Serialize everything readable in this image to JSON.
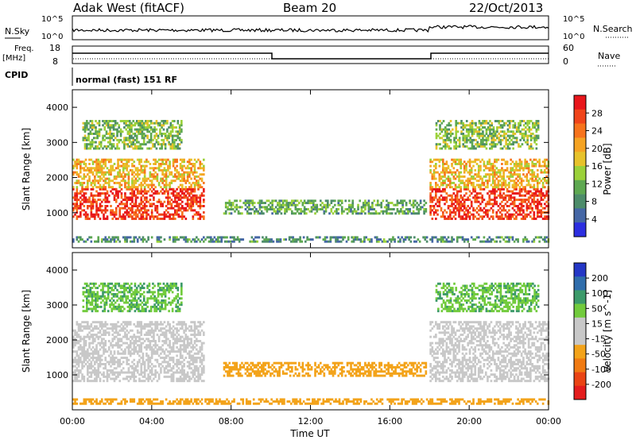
{
  "header": {
    "site": "Adak West (fitACF)",
    "beam": "Beam 20",
    "date": "22/Oct/2013"
  },
  "status_panels": {
    "nsky_label": "N.Sky",
    "nsearch_label": "N.Search",
    "noise_ticks": [
      "10^5",
      "10^0"
    ],
    "freq_label": "Freq.",
    "freq_unit": "[MHz]",
    "freq_ticks": [
      "18",
      "8"
    ],
    "nave_label": "Nave",
    "nave_ticks": [
      "60",
      "0"
    ],
    "cpid_label": "CPID",
    "cpid_text": "normal (fast) 151 RF"
  },
  "chart_data": [
    {
      "type": "heatmap",
      "title": "",
      "ylabel": "Slant Range [km]",
      "xlabel": "",
      "ylim": [
        0,
        4500
      ],
      "yticks": [
        "1000",
        "2000",
        "3000",
        "4000"
      ],
      "colorbar": {
        "label": "Power [dB]",
        "ticks": [
          "28",
          "24",
          "20",
          "16",
          "12",
          "8",
          "4"
        ],
        "colors": [
          "#e8161b",
          "#f0441a",
          "#f7731c",
          "#f5a323",
          "#e7c22b",
          "#9bd13a",
          "#5ea851",
          "#4d8c6a",
          "#4567a5",
          "#2c2ee0"
        ]
      },
      "regions": [
        {
          "t0": 0.0,
          "t1": 6.6,
          "r0": 800,
          "r1": 1700,
          "level": 26
        },
        {
          "t0": 0.0,
          "t1": 6.6,
          "r0": 1700,
          "r1": 2500,
          "level": 18
        },
        {
          "t0": 0.5,
          "t1": 5.5,
          "r0": 2800,
          "r1": 3600,
          "level": 12
        },
        {
          "t0": 7.6,
          "t1": 17.8,
          "r0": 950,
          "r1": 1350,
          "level": 10
        },
        {
          "t0": 18.0,
          "t1": 24.0,
          "r0": 800,
          "r1": 1700,
          "level": 26
        },
        {
          "t0": 18.0,
          "t1": 24.0,
          "r0": 1700,
          "r1": 2500,
          "level": 18
        },
        {
          "t0": 18.3,
          "t1": 23.5,
          "r0": 2800,
          "r1": 3600,
          "level": 12
        },
        {
          "t0": 0.0,
          "t1": 24.0,
          "r0": 150,
          "r1": 320,
          "level": 8
        }
      ]
    },
    {
      "type": "heatmap",
      "title": "",
      "ylabel": "Slant Range [km]",
      "xlabel": "Time UT",
      "ylim": [
        0,
        4500
      ],
      "xlim": [
        0,
        24
      ],
      "yticks": [
        "1000",
        "2000",
        "3000",
        "4000"
      ],
      "xticks": [
        "00:00",
        "04:00",
        "08:00",
        "12:00",
        "16:00",
        "20:00",
        "00:00"
      ],
      "colorbar": {
        "label": "Velocity [m s^-1]",
        "ticks": [
          "200",
          "100",
          "50",
          "15",
          "-15",
          "-50",
          "-100",
          "-200"
        ],
        "colors": [
          "#2437c6",
          "#2f6dab",
          "#3c9a6a",
          "#72cb3d",
          "#c8c8c8",
          "#c8c8c8",
          "#f3a31a",
          "#f07a12",
          "#ea4414",
          "#e41d1d"
        ]
      },
      "regions": [
        {
          "t0": 0.0,
          "t1": 6.6,
          "r0": 800,
          "r1": 2500,
          "level": 0
        },
        {
          "t0": 0.5,
          "t1": 5.5,
          "r0": 2800,
          "r1": 3600,
          "level": 30
        },
        {
          "t0": 7.6,
          "t1": 17.8,
          "r0": 950,
          "r1": 1350,
          "level": -60
        },
        {
          "t0": 18.0,
          "t1": 24.0,
          "r0": 800,
          "r1": 2500,
          "level": 0
        },
        {
          "t0": 18.3,
          "t1": 23.5,
          "r0": 2800,
          "r1": 3600,
          "level": 30
        },
        {
          "t0": 0.0,
          "t1": 24.0,
          "r0": 150,
          "r1": 320,
          "level": -40
        }
      ]
    }
  ]
}
